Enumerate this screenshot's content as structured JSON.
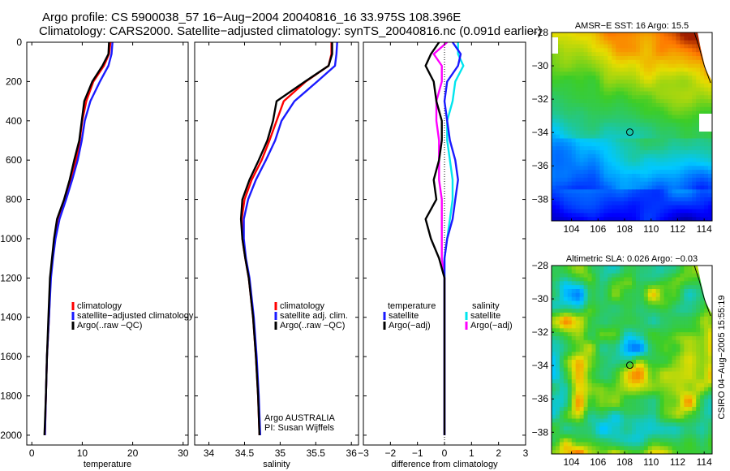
{
  "header": {
    "line1": "Argo profile: CS 5900038_57 16−Aug−2004 20040816_16 33.975S 108.396E",
    "line2": "Climatology: CARS2000. Satellite−adjusted climatology: synTS_20040816.nc (0.091d earlier)"
  },
  "credit": "CSIRO 04−Aug−2005 15:55:19",
  "colors": {
    "red": "#ff0000",
    "blue": "#1a1aff",
    "black": "#000000",
    "cyan": "#00e5ee",
    "magenta": "#ff00ff"
  },
  "chart_data": [
    {
      "type": "line",
      "title": "",
      "xlabel": "temperature",
      "ylabel": "",
      "xlim": [
        -1,
        31
      ],
      "ylim": [
        2050,
        0
      ],
      "xticks": [
        0,
        10,
        20,
        30
      ],
      "yticks": [
        0,
        200,
        400,
        600,
        800,
        1000,
        1200,
        1400,
        1600,
        1800,
        2000
      ],
      "legend_position": "lower-right",
      "legend": [
        "climatology",
        "satellite−adjusted climatology",
        "Argo(..raw −QC)"
      ],
      "series": [
        {
          "name": "climatology",
          "color": "red",
          "x": [
            15.6,
            15.3,
            14.3,
            12.2,
            10.8,
            10.0,
            9.5,
            8.8,
            7.8,
            6.6,
            5.4,
            4.6,
            4.1,
            3.7,
            3.4,
            3.0,
            2.8,
            2.6
          ],
          "y": [
            0,
            60,
            120,
            200,
            300,
            400,
            500,
            600,
            700,
            800,
            900,
            1000,
            1100,
            1200,
            1400,
            1600,
            1800,
            2000
          ]
        },
        {
          "name": "satellite-adjusted",
          "color": "blue",
          "x": [
            16.0,
            15.8,
            15.2,
            13.5,
            11.6,
            10.5,
            9.9,
            9.1,
            8.0,
            6.8,
            5.5,
            4.7,
            4.2,
            3.8,
            3.4,
            3.0,
            2.8,
            2.6
          ],
          "y": [
            0,
            60,
            120,
            200,
            300,
            400,
            500,
            600,
            700,
            800,
            900,
            1000,
            1100,
            1200,
            1400,
            1600,
            1800,
            2000
          ]
        },
        {
          "name": "Argo",
          "color": "black",
          "x": [
            15.3,
            15.2,
            14.0,
            12.0,
            10.4,
            9.9,
            9.4,
            8.4,
            7.5,
            6.4,
            5.0,
            4.4,
            4.0,
            3.6,
            3.3,
            3.0,
            2.8,
            2.5
          ],
          "y": [
            0,
            60,
            120,
            200,
            300,
            400,
            500,
            600,
            700,
            800,
            900,
            1000,
            1100,
            1200,
            1400,
            1600,
            1800,
            2000
          ]
        }
      ]
    },
    {
      "type": "line",
      "title": "",
      "xlabel": "salinity",
      "ylabel": "",
      "xlim": [
        33.8,
        36.1
      ],
      "ylim": [
        2050,
        0
      ],
      "xticks": [
        34,
        34.5,
        35,
        35.5,
        36
      ],
      "legend_position": "lower-right",
      "legend": [
        "climatology",
        "satellite adj. clim.",
        "Argo(..raw −QC)"
      ],
      "annotation": [
        "Argo AUSTRALIA",
        "PI: Susan Wijffels"
      ],
      "series": [
        {
          "name": "climatology",
          "color": "red",
          "x": [
            35.72,
            35.72,
            35.68,
            35.36,
            35.05,
            34.95,
            34.85,
            34.74,
            34.6,
            34.5,
            34.46,
            34.47,
            34.51,
            34.56,
            34.62,
            34.66,
            34.69,
            34.71
          ],
          "y": [
            0,
            60,
            120,
            200,
            300,
            400,
            500,
            600,
            700,
            800,
            900,
            1000,
            1100,
            1200,
            1400,
            1600,
            1800,
            2000
          ]
        },
        {
          "name": "satellite-adjusted",
          "color": "blue",
          "x": [
            35.8,
            35.79,
            35.77,
            35.52,
            35.2,
            35.02,
            34.93,
            34.8,
            34.66,
            34.55,
            34.49,
            34.49,
            34.52,
            34.57,
            34.63,
            34.67,
            34.7,
            34.72
          ],
          "y": [
            0,
            60,
            120,
            200,
            300,
            400,
            500,
            600,
            700,
            800,
            900,
            1000,
            1100,
            1200,
            1400,
            1600,
            1800,
            2000
          ]
        },
        {
          "name": "Argo",
          "color": "black",
          "x": [
            35.73,
            35.73,
            35.68,
            35.35,
            34.95,
            34.9,
            34.82,
            34.7,
            34.57,
            34.47,
            34.45,
            34.47,
            34.51,
            34.56,
            34.62,
            34.66,
            34.69,
            34.71
          ],
          "y": [
            0,
            60,
            120,
            200,
            300,
            400,
            500,
            600,
            700,
            800,
            900,
            1000,
            1100,
            1200,
            1400,
            1600,
            1800,
            2000
          ]
        }
      ]
    },
    {
      "type": "line",
      "title": "",
      "xlabel": "difference from climatology",
      "ylabel": "",
      "xlim": [
        -3,
        3
      ],
      "ylim": [
        2050,
        0
      ],
      "xticks": [
        -3,
        -2,
        -1,
        0,
        1,
        2,
        3
      ],
      "legend_position": "lower-center",
      "legend": [
        "temperature",
        "satellite",
        "Argo(−adj)",
        "salinity",
        "satellite",
        "Argo(−adj)"
      ],
      "series": [
        {
          "name": "temperature satellite",
          "color": "blue",
          "x": [
            0.3,
            0.6,
            0.5,
            0.1,
            0.0,
            0.1,
            0.2,
            0.4,
            0.5,
            0.4,
            0.3,
            0.1,
            0.0,
            0.0,
            0.0,
            0.0,
            0.0,
            0.0
          ],
          "y": [
            0,
            60,
            120,
            200,
            300,
            400,
            500,
            600,
            700,
            800,
            900,
            1000,
            1100,
            1200,
            1400,
            1600,
            1800,
            2000
          ]
        },
        {
          "name": "temperature Argo",
          "color": "black",
          "x": [
            -0.2,
            -0.5,
            -0.7,
            -0.4,
            -0.3,
            -0.1,
            -0.1,
            -0.2,
            -0.4,
            -0.3,
            -0.7,
            -0.5,
            -0.2,
            0.0,
            0.0,
            0.0,
            0.0,
            0.0
          ],
          "y": [
            0,
            60,
            120,
            200,
            300,
            400,
            500,
            600,
            700,
            800,
            900,
            1000,
            1100,
            1200,
            1400,
            1600,
            1800,
            2000
          ]
        },
        {
          "name": "salinity satellite",
          "color": "cyan",
          "x": [
            0.5,
            0.5,
            0.7,
            0.4,
            0.3,
            0.1,
            0.1,
            0.2,
            0.3,
            0.3,
            0.2,
            0.1,
            0.0,
            0.0,
            0.0,
            0.0,
            0.0,
            0.0
          ],
          "y": [
            0,
            60,
            120,
            200,
            300,
            400,
            500,
            600,
            700,
            800,
            900,
            1000,
            1100,
            1200,
            1400,
            1600,
            1800,
            2000
          ]
        },
        {
          "name": "salinity Argo",
          "color": "magenta",
          "x": [
            0.1,
            -0.4,
            -0.1,
            -0.1,
            -0.3,
            -0.3,
            -0.2,
            -0.2,
            -0.2,
            -0.1,
            -0.1,
            -0.1,
            -0.1,
            0.0,
            0.0,
            0.0,
            0.0,
            0.0
          ],
          "y": [
            0,
            60,
            120,
            200,
            300,
            400,
            500,
            600,
            700,
            800,
            900,
            1000,
            1100,
            1200,
            1400,
            1600,
            1800,
            2000
          ]
        }
      ]
    },
    {
      "type": "heatmap",
      "title": "AMSR−E SST: 16 Argo: 15.5",
      "xlim": [
        102.5,
        114.6
      ],
      "ylim": [
        -39.3,
        -28
      ],
      "xticks": [
        104,
        106,
        108,
        110,
        112,
        114
      ],
      "yticks": [
        -28,
        -30,
        -32,
        -34,
        -36,
        -38
      ],
      "marker": {
        "lon": 108.396,
        "lat": -33.975
      }
    },
    {
      "type": "heatmap",
      "title": "Altimetric SLA: 0.026 Argo: −0.03",
      "xlim": [
        102.5,
        114.6
      ],
      "ylim": [
        -39.3,
        -28
      ],
      "xticks": [
        104,
        106,
        108,
        110,
        112,
        114
      ],
      "yticks": [
        -28,
        -30,
        -32,
        -34,
        -36,
        -38
      ],
      "marker": {
        "lon": 108.396,
        "lat": -33.975
      }
    }
  ]
}
